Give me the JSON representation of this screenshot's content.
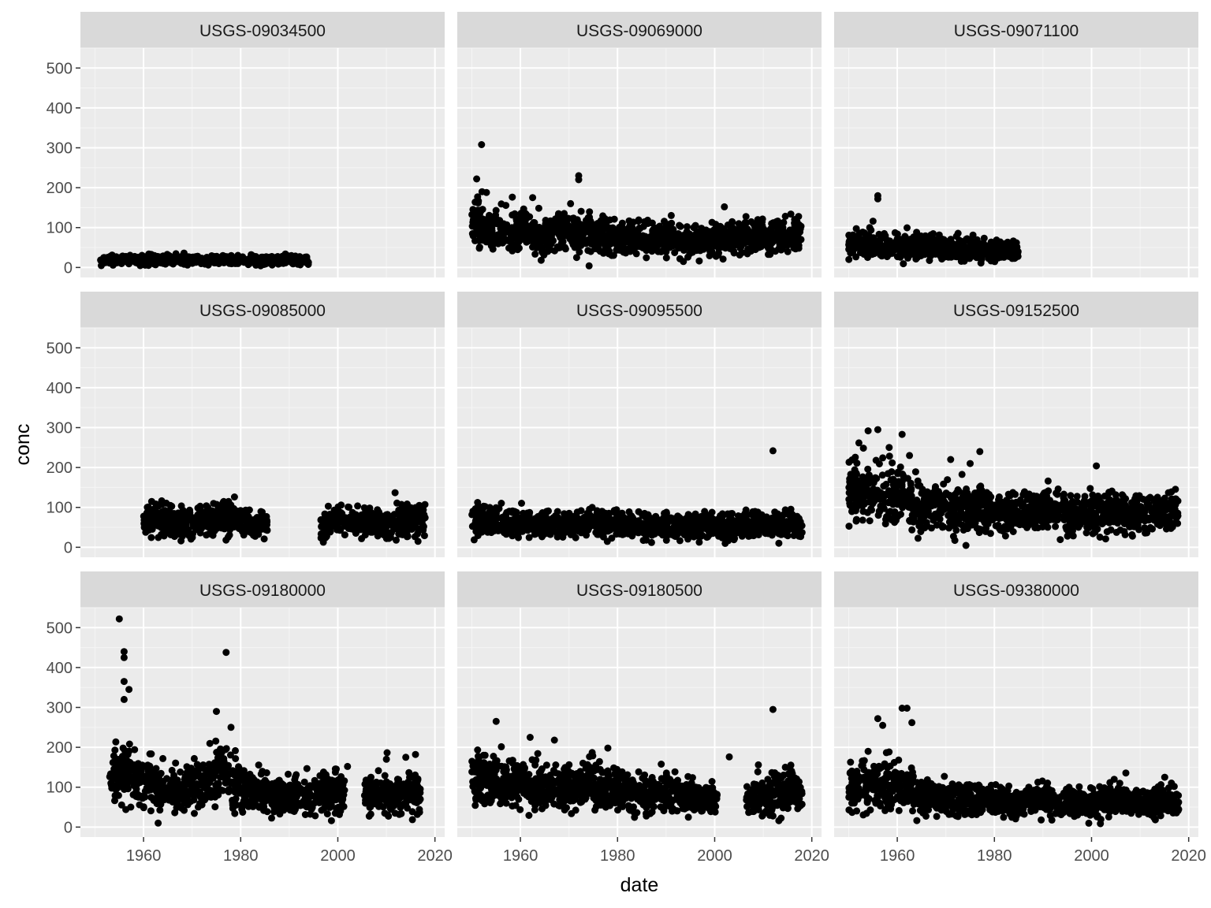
{
  "chart_data": {
    "type": "scatter",
    "layout": "facet-grid 3x3",
    "xlabel": "date",
    "ylabel": "conc",
    "xlim": [
      1947,
      2022
    ],
    "ylim": [
      -25,
      550
    ],
    "x_ticks": [
      1960,
      1980,
      2000,
      2020
    ],
    "y_ticks": [
      0,
      100,
      200,
      300,
      400,
      500
    ],
    "grid": true,
    "shared_axes": true,
    "colors": {
      "panel_background": "#ebebeb",
      "strip_background": "#d9d9d9",
      "grid_major": "#ffffff",
      "point": "#000000"
    },
    "facets": [
      {
        "name": "USGS-09034500",
        "summary": [
          [
            1951,
            17
          ],
          [
            1955,
            19
          ],
          [
            1960,
            18
          ],
          [
            1965,
            20
          ],
          [
            1970,
            18
          ],
          [
            1975,
            19
          ],
          [
            1980,
            18
          ],
          [
            1985,
            17
          ],
          [
            1990,
            19
          ],
          [
            1994,
            16
          ]
        ],
        "outliers": []
      },
      {
        "name": "USGS-09069000",
        "summary": [
          [
            1950,
            110
          ],
          [
            1955,
            95
          ],
          [
            1960,
            90
          ],
          [
            1965,
            85
          ],
          [
            1970,
            95
          ],
          [
            1975,
            80
          ],
          [
            1980,
            75
          ],
          [
            1985,
            70
          ],
          [
            1990,
            75
          ],
          [
            1995,
            65
          ],
          [
            2000,
            70
          ],
          [
            2005,
            75
          ],
          [
            2010,
            80
          ],
          [
            2015,
            75
          ],
          [
            2018,
            85
          ]
        ],
        "outliers": [
          [
            1952,
            308
          ],
          [
            1951,
            222
          ],
          [
            1972,
            230
          ],
          [
            1972,
            220
          ],
          [
            2002,
            152
          ],
          [
            1953,
            188
          ]
        ]
      },
      {
        "name": "USGS-09071100",
        "summary": [
          [
            1950,
            55
          ],
          [
            1955,
            57
          ],
          [
            1960,
            53
          ],
          [
            1965,
            52
          ],
          [
            1970,
            48
          ],
          [
            1975,
            47
          ],
          [
            1980,
            46
          ],
          [
            1985,
            44
          ]
        ],
        "outliers": [
          [
            1956,
            180
          ],
          [
            1956,
            172
          ],
          [
            1955,
            116
          ]
        ]
      },
      {
        "name": "USGS-09085000",
        "summary": [
          [
            1960,
            65
          ],
          [
            1962,
            70
          ],
          [
            1965,
            68
          ],
          [
            1968,
            62
          ],
          [
            1970,
            70
          ],
          [
            1972,
            66
          ],
          [
            1978,
            80
          ],
          [
            1980,
            62
          ],
          [
            1982,
            58
          ],
          [
            1984,
            55
          ],
          [
            1998,
            60
          ],
          [
            2002,
            62
          ],
          [
            2006,
            58
          ],
          [
            2010,
            60
          ],
          [
            2014,
            65
          ],
          [
            2018,
            70
          ]
        ],
        "outliers": [
          [
            1963,
            103
          ],
          [
            1977,
            100
          ],
          [
            1968,
            28
          ]
        ]
      },
      {
        "name": "USGS-09095500",
        "summary": [
          [
            1950,
            68
          ],
          [
            1955,
            66
          ],
          [
            1960,
            62
          ],
          [
            1965,
            58
          ],
          [
            1970,
            58
          ],
          [
            1975,
            56
          ],
          [
            1980,
            58
          ],
          [
            1985,
            52
          ],
          [
            1990,
            55
          ],
          [
            1995,
            52
          ],
          [
            2000,
            54
          ],
          [
            2005,
            56
          ],
          [
            2010,
            56
          ],
          [
            2015,
            55
          ],
          [
            2018,
            55
          ]
        ],
        "outliers": [
          [
            2012,
            242
          ],
          [
            1987,
            12
          ]
        ]
      },
      {
        "name": "USGS-09152500",
        "summary": [
          [
            1950,
            145
          ],
          [
            1955,
            140
          ],
          [
            1960,
            125
          ],
          [
            1965,
            105
          ],
          [
            1970,
            100
          ],
          [
            1975,
            95
          ],
          [
            1980,
            85
          ],
          [
            1985,
            80
          ],
          [
            1990,
            95
          ],
          [
            1995,
            85
          ],
          [
            2000,
            85
          ],
          [
            2005,
            90
          ],
          [
            2010,
            85
          ],
          [
            2015,
            90
          ],
          [
            2018,
            95
          ]
        ],
        "outliers": [
          [
            1956,
            295
          ],
          [
            1961,
            283
          ],
          [
            1954,
            292
          ],
          [
            1977,
            240
          ],
          [
            2001,
            204
          ],
          [
            1971,
            220
          ],
          [
            1975,
            210
          ]
        ]
      },
      {
        "name": "USGS-09180000",
        "summary": [
          [
            1953,
            105
          ],
          [
            1955,
            130
          ],
          [
            1958,
            120
          ],
          [
            1961,
            115
          ],
          [
            1963,
            100
          ],
          [
            1966,
            95
          ],
          [
            1970,
            100
          ],
          [
            1973,
            120
          ],
          [
            1976,
            130
          ],
          [
            1979,
            110
          ],
          [
            1982,
            85
          ],
          [
            1985,
            80
          ],
          [
            1988,
            75
          ],
          [
            1991,
            80
          ],
          [
            1994,
            80
          ],
          [
            2000,
            90
          ],
          [
            2007,
            80
          ],
          [
            2010,
            85
          ],
          [
            2013,
            80
          ],
          [
            2017,
            90
          ]
        ],
        "outliers": [
          [
            1955,
            522
          ],
          [
            1956,
            440
          ],
          [
            1956,
            425
          ],
          [
            1977,
            438
          ],
          [
            1956,
            365
          ],
          [
            1957,
            345
          ],
          [
            1956,
            320
          ],
          [
            1975,
            290
          ],
          [
            1978,
            250
          ],
          [
            1963,
            10
          ],
          [
            2002,
            152
          ],
          [
            2016,
            182
          ],
          [
            2014,
            175
          ],
          [
            2010,
            170
          ]
        ]
      },
      {
        "name": "USGS-09180500",
        "summary": [
          [
            1950,
            115
          ],
          [
            1955,
            120
          ],
          [
            1960,
            115
          ],
          [
            1965,
            100
          ],
          [
            1970,
            100
          ],
          [
            1975,
            105
          ],
          [
            1980,
            95
          ],
          [
            1985,
            80
          ],
          [
            1990,
            85
          ],
          [
            1995,
            75
          ],
          [
            1999,
            70
          ],
          [
            2008,
            75
          ],
          [
            2012,
            85
          ],
          [
            2016,
            90
          ],
          [
            2018,
            85
          ]
        ],
        "outliers": [
          [
            2012,
            295
          ],
          [
            1955,
            265
          ],
          [
            1962,
            225
          ],
          [
            1967,
            218
          ],
          [
            1978,
            198
          ],
          [
            2003,
            176
          ],
          [
            2009,
            156
          ],
          [
            2012,
            28
          ]
        ]
      },
      {
        "name": "USGS-09380000",
        "summary": [
          [
            1950,
            95
          ],
          [
            1953,
            110
          ],
          [
            1956,
            100
          ],
          [
            1959,
            105
          ],
          [
            1962,
            95
          ],
          [
            1965,
            75
          ],
          [
            1970,
            72
          ],
          [
            1975,
            70
          ],
          [
            1980,
            70
          ],
          [
            1985,
            60
          ],
          [
            1990,
            72
          ],
          [
            1995,
            62
          ],
          [
            2000,
            58
          ],
          [
            2005,
            68
          ],
          [
            2010,
            62
          ],
          [
            2015,
            65
          ],
          [
            2018,
            60
          ]
        ],
        "outliers": [
          [
            1961,
            298
          ],
          [
            1962,
            298
          ],
          [
            1956,
            272
          ],
          [
            1963,
            262
          ],
          [
            1957,
            255
          ],
          [
            1954,
            190
          ]
        ]
      }
    ]
  }
}
